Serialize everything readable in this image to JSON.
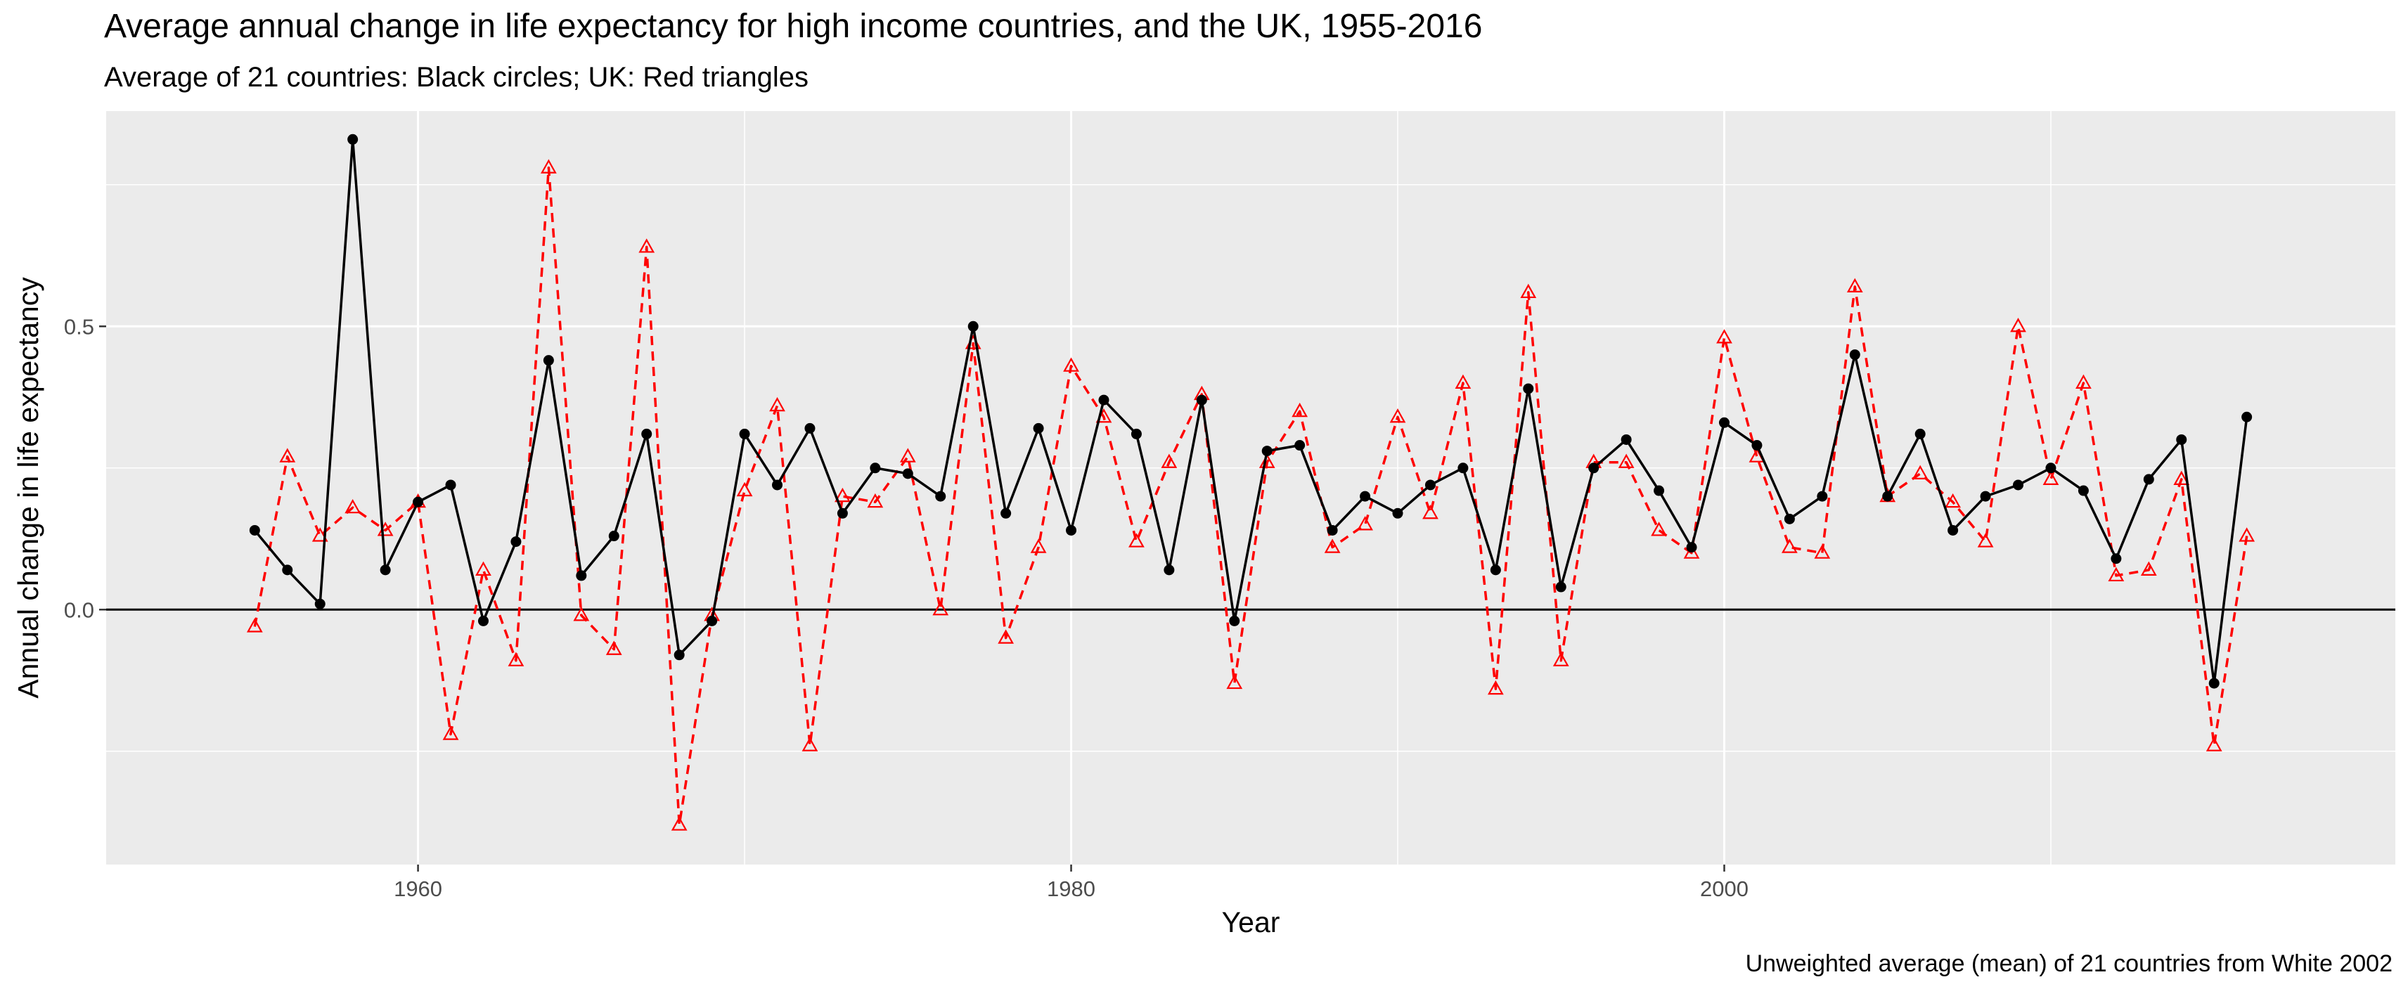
{
  "chart_data": {
    "type": "line",
    "title": "Average annual change in life expectancy for high income countries, and the UK, 1955-2016",
    "subtitle": "Average of 21 countries: Black circles; UK: Red triangles",
    "caption": "Unweighted average (mean) of 21 countries from White 2002",
    "xlabel": "Year",
    "ylabel": "Annual change in life expectancy",
    "xlim": [
      1950.45,
      2020.55
    ],
    "ylim": [
      -0.45,
      0.88
    ],
    "x_ticks": [
      1960,
      1980,
      2000
    ],
    "x_tick_labels": [
      "1960",
      "1980",
      "2000"
    ],
    "y_ticks": [
      0.0,
      0.5
    ],
    "y_tick_labels": [
      "0.0",
      "0.5"
    ],
    "reference_line_y": 0,
    "grid": true,
    "background": "#ebebeb",
    "x": [
      1955,
      1956,
      1957,
      1958,
      1959,
      1960,
      1961,
      1962,
      1963,
      1964,
      1965,
      1966,
      1967,
      1968,
      1969,
      1970,
      1971,
      1972,
      1973,
      1974,
      1975,
      1976,
      1977,
      1978,
      1979,
      1980,
      1981,
      1982,
      1983,
      1984,
      1985,
      1986,
      1987,
      1988,
      1989,
      1990,
      1991,
      1992,
      1993,
      1994,
      1995,
      1996,
      1997,
      1998,
      1999,
      2000,
      2001,
      2002,
      2003,
      2004,
      2005,
      2006,
      2007,
      2008,
      2009,
      2010,
      2011,
      2012,
      2013,
      2014,
      2015,
      2016
    ],
    "series": [
      {
        "color": "#000000",
        "marker": "circle",
        "line_style": "solid",
        "values": [
          0.14,
          0.07,
          0.01,
          0.83,
          0.07,
          0.19,
          0.22,
          -0.02,
          0.12,
          0.44,
          0.06,
          0.13,
          0.31,
          -0.08,
          -0.02,
          0.31,
          0.22,
          0.32,
          0.17,
          0.25,
          0.24,
          0.2,
          0.5,
          0.17,
          0.32,
          0.14,
          0.37,
          0.31,
          0.07,
          0.37,
          -0.02,
          0.28,
          0.29,
          0.14,
          0.2,
          0.17,
          0.22,
          0.25,
          0.07,
          0.39,
          0.04,
          0.25,
          0.3,
          0.21,
          0.11,
          0.33,
          0.29,
          0.16,
          0.2,
          0.45,
          0.2,
          0.31,
          0.14,
          0.2,
          0.22,
          0.25,
          0.21,
          0.09,
          0.23,
          0.3,
          -0.13,
          0.34
        ]
      },
      {
        "color": "#ff0000",
        "marker": "triangle-open",
        "line_style": "dashed",
        "values": [
          -0.03,
          0.27,
          0.13,
          0.18,
          0.14,
          0.19,
          -0.22,
          0.07,
          -0.09,
          0.78,
          -0.01,
          -0.07,
          0.64,
          -0.38,
          -0.01,
          0.21,
          0.36,
          -0.24,
          0.2,
          0.19,
          0.27,
          0.0,
          0.47,
          -0.05,
          0.11,
          0.43,
          0.34,
          0.12,
          0.26,
          0.38,
          -0.13,
          0.26,
          0.35,
          0.11,
          0.15,
          0.34,
          0.17,
          0.4,
          -0.14,
          0.56,
          -0.09,
          0.26,
          0.26,
          0.14,
          0.1,
          0.48,
          0.27,
          0.11,
          0.1,
          0.57,
          0.2,
          0.24,
          0.19,
          0.12,
          0.5,
          0.23,
          0.4,
          0.06,
          0.07,
          0.23,
          -0.24,
          0.13
        ]
      }
    ]
  }
}
